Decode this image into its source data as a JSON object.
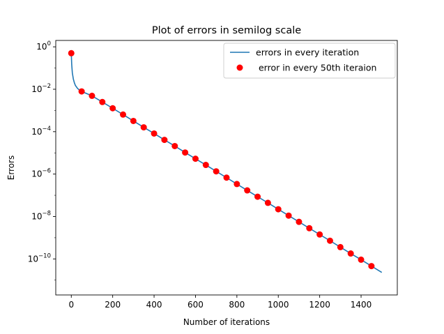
{
  "chart_data": {
    "type": "line",
    "title": "Plot of errors in semilog scale",
    "xlabel": "Number of iterations",
    "ylabel": "Errors",
    "xlim": [
      -75,
      1575
    ],
    "ylim": [
      2e-12,
      2.0
    ],
    "yscale": "log",
    "grid": false,
    "legend_position": "top-right",
    "x_ticks": [
      0,
      200,
      400,
      600,
      800,
      1000,
      1200,
      1400
    ],
    "y_ticks": [
      {
        "value": 1,
        "base": "10",
        "exp": "0"
      },
      {
        "value": 0.01,
        "base": "10",
        "exp": "−2"
      },
      {
        "value": 0.0001,
        "base": "10",
        "exp": "−4"
      },
      {
        "value": 1e-06,
        "base": "10",
        "exp": "−6"
      },
      {
        "value": 1e-08,
        "base": "10",
        "exp": "−8"
      },
      {
        "value": 1e-10,
        "base": "10",
        "exp": "−10"
      }
    ],
    "series": [
      {
        "name": "errors in every iteration",
        "kind": "line",
        "color": "#1f77b4",
        "x": [
          0,
          2,
          5,
          10,
          15,
          20,
          30,
          40,
          50,
          100,
          150,
          200,
          250,
          300,
          350,
          400,
          450,
          500,
          550,
          600,
          650,
          700,
          750,
          800,
          850,
          900,
          950,
          1000,
          1050,
          1100,
          1150,
          1200,
          1250,
          1300,
          1350,
          1400,
          1450,
          1500
        ],
        "y": [
          0.5,
          0.15,
          0.06,
          0.03,
          0.02,
          0.015,
          0.011,
          0.009,
          0.0079,
          0.0049,
          0.0025,
          0.00127,
          0.00064,
          0.00032,
          0.00016,
          8.2e-05,
          4.1e-05,
          2.1e-05,
          1.04e-05,
          5.3e-06,
          2.7e-06,
          1.35e-06,
          6.8e-07,
          3.4e-07,
          1.7e-07,
          8.6e-08,
          4.4e-08,
          2.2e-08,
          1.1e-08,
          5.6e-09,
          2.8e-09,
          1.42e-09,
          7.2e-10,
          3.6e-10,
          1.8e-10,
          9.2e-11,
          4.6e-11,
          2.3e-11
        ]
      },
      {
        "name": " error in every 50th iteraion",
        "kind": "scatter",
        "color": "#ff0000",
        "x": [
          0,
          50,
          100,
          150,
          200,
          250,
          300,
          350,
          400,
          450,
          500,
          550,
          600,
          650,
          700,
          750,
          800,
          850,
          900,
          950,
          1000,
          1050,
          1100,
          1150,
          1200,
          1250,
          1300,
          1350,
          1400,
          1450
        ],
        "y": [
          0.5,
          0.0079,
          0.0049,
          0.0025,
          0.00127,
          0.00064,
          0.00032,
          0.00016,
          8.2e-05,
          4.1e-05,
          2.1e-05,
          1.04e-05,
          5.3e-06,
          2.7e-06,
          1.35e-06,
          6.8e-07,
          3.4e-07,
          1.7e-07,
          8.6e-08,
          4.4e-08,
          2.2e-08,
          1.1e-08,
          5.6e-09,
          2.8e-09,
          1.42e-09,
          7.2e-10,
          3.6e-10,
          1.8e-10,
          9.2e-11,
          4.6e-11
        ]
      }
    ]
  }
}
